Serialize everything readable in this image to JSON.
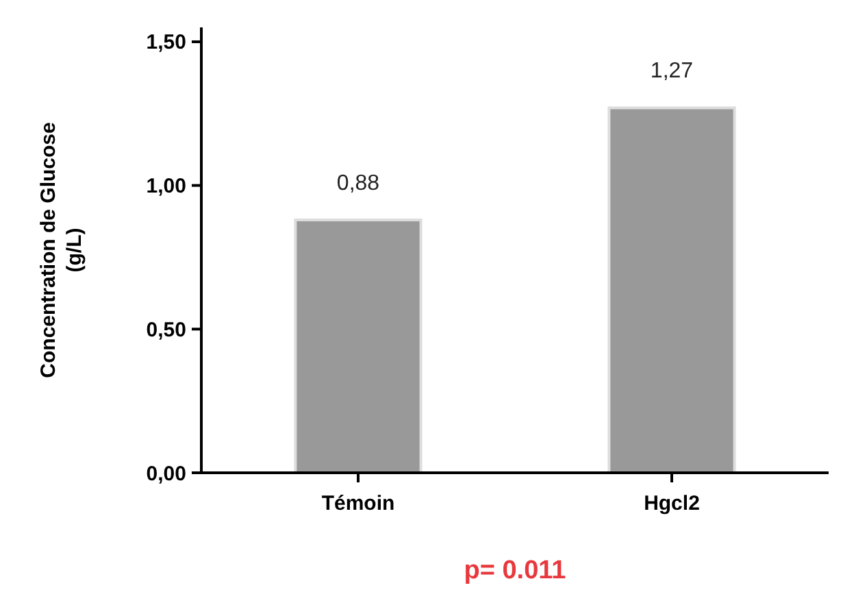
{
  "chart_data": {
    "type": "bar",
    "ylabel": "Concentration de Glucose\n(g/L)",
    "categories": [
      "Témoin",
      "Hgcl2"
    ],
    "values": [
      0.88,
      1.27
    ],
    "color": "#999999",
    "value_labels": [
      "0,88",
      "1,27"
    ],
    "ylim": [
      0,
      1.55
    ],
    "yticks": [
      {
        "value": 0,
        "label": "0,00"
      },
      {
        "value": 0.5,
        "label": "0,50"
      },
      {
        "value": 1,
        "label": "1,00"
      },
      {
        "value": 1.5,
        "label": "1,50"
      }
    ],
    "grid": false,
    "annotations": [
      "p= 0.011"
    ]
  }
}
